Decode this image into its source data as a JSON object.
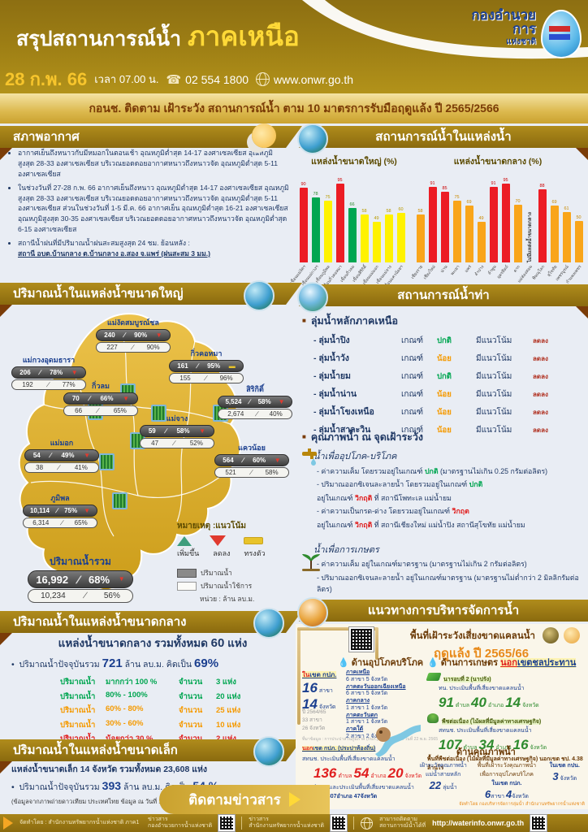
{
  "colors": {
    "gold": "#9a7b16",
    "red": "#ec1c24",
    "green": "#00a651",
    "yellow": "#fff200",
    "orange": "#f9a51a",
    "text_blue": "#1f3864"
  },
  "header": {
    "title_prefix": "สรุปสถานการณ์น้ำ",
    "title_region": "ภาคเหนือ",
    "date": "28 ก.พ. 66",
    "time_label": "เวลา 07.00 น.",
    "phone": "02 554 1800",
    "website": "www.onwr.go.th",
    "logo_line1": "กองอำนวยการ",
    "logo_line2": "แห่งชาติ"
  },
  "banner": "กอนช. ติดตาม เฝ้าระวัง สถานการณ์น้ำ ตาม 10 มาตรการรับมือฤดูแล้ง ปี 2565/2566",
  "weather": {
    "title": "สภาพอากาศ",
    "bullets": [
      "อากาศเย็นถึงหนาวกับมีหมอกในตอนเช้า อุณหภูมิต่ำสุด 14-17 องศาเซลเซียส อุณหภูมิสูงสุด 28-33 องศาเซลเซียส บริเวณยอดดอยอากาศหนาวถึงหนาวจัด อุณหภูมิต่ำสุด 5-11 องศาเซลเซียส",
      "ในช่วงวันที่ 27-28 ก.พ. 66 อากาศเย็นถึงหนาว อุณหภูมิต่ำสุด 14-17 องศาเซลเซียส อุณหภูมิสูงสุด 28-33 องศาเซลเซียส บริเวณยอดดอยอากาศหนาวถึงหนาวจัด อุณหภูมิต่ำสุด 5-11 องศาเซลเซียส ส่วนในช่วงวันที่ 1-5 มี.ค. 66 อากาศเย็น อุณหภูมิต่ำสุด 16-21 องศาเซลเซียส อุณหภูมิสูงสุด 30-35 องศาเซลเซียส บริเวณยอดดอยอากาศหนาวถึงหนาวจัด อุณหภูมิต่ำสุด 6-15 องศาเซลเซียส",
      "สถานีน้ำฝนที่มีปริมาณน้ำฝนสะสมสูงสุด 24 ชม. ย้อนหลัง :"
    ],
    "station_line": "สถานี อบต.บ้านกลาง ต.บ้านกลาง อ.สอง จ.แพร่  (ฝนสะสม 3 มม.)"
  },
  "chart_section": {
    "title": "สถานการณ์น้ำในแหล่งน้ำ"
  },
  "chart_data": {
    "type": "bar",
    "ylim": [
      0,
      100
    ],
    "grid": false,
    "groups": [
      {
        "title": "แหล่งน้ำขนาดใหญ่ (%)",
        "categories": [
          "เขื่อนแม่งัดฯ",
          "เขื่อนแม่กวงฯ",
          "เขื่อนภูมิพล",
          "เขื่อนกิ่วคอหมา",
          "เขื่อนกิ่วลม",
          "เขื่อนสิริกิติ์",
          "เขื่อนแม่มอก",
          "เขื่อนแม่จาง",
          "เขื่อนแควน้อยฯ"
        ],
        "values": [
          90,
          78,
          75,
          95,
          66,
          58,
          49,
          58,
          60
        ],
        "colors": [
          "red",
          "green",
          "yellow",
          "red",
          "green",
          "yellow",
          "yellow",
          "yellow",
          "yellow"
        ]
      },
      {
        "title": "แหล่งน้ำขนาดกลาง (%)",
        "categories": [
          "เชียงราย",
          "เชียงใหม่",
          "น่าน",
          "พะเยา",
          "แพร่",
          "ลำปาง",
          "ลำพูน",
          "อุตรดิตถ์",
          "ตาก",
          "แม่ฮ่องสอน",
          "พิษณุโลก",
          "สุโขทัย",
          "เพชรบูรณ์",
          "กำแพงเพชร"
        ],
        "values": [
          58,
          91,
          85,
          75,
          69,
          49,
          91,
          95,
          70,
          null,
          88,
          69,
          61,
          50
        ],
        "colors": [
          "orange",
          "red",
          "red",
          "orange",
          "orange",
          "orange",
          "red",
          "red",
          "orange",
          null,
          "red",
          "orange",
          "orange",
          "orange"
        ],
        "no_data_label": "ไม่มีแหล่งน้ำขนาดกลาง"
      }
    ]
  },
  "large_sources": {
    "title": "ปริมาณน้ำในแหล่งน้ำขนาดใหญ่",
    "dams": [
      {
        "name": "แม่งัดสมบูรณ์ชล",
        "vol": "240",
        "pct": "90%",
        "trend": "down",
        "vol2": "227",
        "pct2": "90%"
      },
      {
        "name": "แม่กวงอุดมธารา",
        "vol": "206",
        "pct": "78%",
        "trend": "down",
        "vol2": "192",
        "pct2": "77%"
      },
      {
        "name": "กิ่วคอหมา",
        "vol": "161",
        "pct": "95%",
        "trend": "steady",
        "vol2": "155",
        "pct2": "96%"
      },
      {
        "name": "กิ่วลม",
        "vol": "70",
        "pct": "66%",
        "trend": "down",
        "vol2": "66",
        "pct2": "65%"
      },
      {
        "name": "สิริกิติ์",
        "vol": "5,524",
        "pct": "58%",
        "trend": "down",
        "vol2": "2,674",
        "pct2": "40%"
      },
      {
        "name": "แม่จาง",
        "vol": "59",
        "pct": "58%",
        "trend": "down",
        "vol2": "47",
        "pct2": "52%"
      },
      {
        "name": "แม่มอก",
        "vol": "54",
        "pct": "49%",
        "trend": "down",
        "vol2": "38",
        "pct2": "41%"
      },
      {
        "name": "แควน้อย",
        "vol": "564",
        "pct": "60%",
        "trend": "down",
        "vol2": "521",
        "pct2": "58%"
      },
      {
        "name": "ภูมิพล",
        "vol": "10,114",
        "pct": "75%",
        "trend": "down",
        "vol2": "6,314",
        "pct2": "65%"
      }
    ],
    "total": {
      "name": "ปริมาณน้ำรวม",
      "vol": "16,992",
      "pct": "68%",
      "trend": "down",
      "vol2": "10,234",
      "pct2": "56%"
    },
    "note_title": "หมายเหตุ :แนวโน้ม",
    "trend_up": "เพิ่มขึ้น",
    "trend_down": "ลดลง",
    "trend_steady": "ทรงตัว",
    "legend_vol": "ปริมาณน้ำ",
    "legend_usable": "ปริมาณน้ำใช้การ",
    "unit": "หน่วย : ล้าน ลบ.ม."
  },
  "river": {
    "title": "สถานการณ์น้ำท่า",
    "subtitle": "ลุ่มน้ำหลักภาคเหนือ",
    "col_criteria": "เกณฑ์",
    "col_trend": "มีแนวโน้ม",
    "basins": [
      {
        "name": "- ลุ่มน้ำปิง",
        "status": "ปกติ",
        "status_color": "green",
        "trend": "ลดลง"
      },
      {
        "name": "- ลุ่มน้ำวัง",
        "status": "น้อย",
        "status_color": "orange",
        "trend": "ลดลง"
      },
      {
        "name": "- ลุ่มน้ำยม",
        "status": "ปกติ",
        "status_color": "green",
        "trend": "ลดลง"
      },
      {
        "name": "- ลุ่มน้ำน่าน",
        "status": "น้อย",
        "status_color": "orange",
        "trend": "ลดลง"
      },
      {
        "name": "- ลุ่มน้ำโขงเหนือ",
        "status": "น้อย",
        "status_color": "orange",
        "trend": "ลดลง"
      },
      {
        "name": "- ลุ่มน้ำสาละวิน",
        "status": "น้อย",
        "status_color": "orange",
        "trend": "ลดลง"
      }
    ]
  },
  "quality": {
    "title": "คุณภาพน้ำ ณ จุดเฝ้าระวัง",
    "consumption_title": "น้ำเพื่ออุปโภค-บริโภค",
    "lines": [
      {
        "pre": "- ค่าความเค็ม โดยรวมอยู่ในเกณฑ์",
        "status": "ปกติ",
        "status_color": "green",
        "post": "(มาตรฐานไม่เกิน 0.25 กรัมต่อลิตร)"
      },
      {
        "pre": "- ปริมาณออกซิเจนละลายน้ำ โดยรวมอยู่ในเกณฑ์",
        "status": "ปกติ",
        "status_color": "green",
        "post": ""
      },
      {
        "pre": "อยู่ในเกณฑ์",
        "status": "วิกฤติ",
        "status_color": "red",
        "post": "ที่ สถานีโพทะเล แม่น้ำยม"
      },
      {
        "pre": "- ค่าความเป็นกรด-ด่าง โดยรวมอยู่ในเกณฑ์",
        "status": "วิกฤต",
        "status_color": "red",
        "post": ""
      },
      {
        "pre": "อยู่ในเกณฑ์",
        "status": "วิกฤติ",
        "status_color": "red",
        "post": "ที่ สถานีเชียงใหม่ แม่น้ำปิง สถานีสุโขทัย แม่น้ำยม"
      }
    ],
    "agri_title": "น้ำเพื่อการเกษตร",
    "agri_lines": [
      "- ค่าความเค็ม อยู่ในเกณฑ์มาตรฐาน (มาตรฐานไม่เกิน 2 กรัมต่อลิตร)",
      "- ปริมาณออกซิเจนละลายน้ำ อยู่ในเกณฑ์มาตรฐาน (มาตรฐานไม่ต่ำกว่า 2 มิลลิกรัมต่อลิตร)"
    ]
  },
  "medium_sources": {
    "title": "ปริมาณน้ำในแหล่งน้ำขนาดกลาง",
    "subtitle_pre": "แหล่งน้ำขนาดกลาง รวมทั้งหมด",
    "subtitle_num": "60",
    "subtitle_post": "แห่ง",
    "current_pre": "ปริมาณน้ำปัจจุบันรวม",
    "current_num": "721",
    "current_mid": "ล้าน ลบ.ม. คิดเป็น",
    "current_pct": "69%",
    "rows": [
      {
        "label": "ปริมาณน้ำ",
        "range": "มากกว่า 100 %",
        "count_label": "จำนวน",
        "count": "3 แห่ง",
        "color": "green"
      },
      {
        "label": "ปริมาณน้ำ",
        "range": "80% - 100%",
        "count_label": "จำนวน",
        "count": "20 แห่ง",
        "color": "green"
      },
      {
        "label": "ปริมาณน้ำ",
        "range": "60% - 80%",
        "count_label": "จำนวน",
        "count": "25 แห่ง",
        "color": "orange"
      },
      {
        "label": "ปริมาณน้ำ",
        "range": "30% - 60%",
        "count_label": "จำนวน",
        "count": "10 แห่ง",
        "color": "orange"
      },
      {
        "label": "ปริมาณน้ำ",
        "range": "น้อยกว่า 30 %",
        "count_label": "จำนวน",
        "count": "2 แห่ง",
        "color": "red"
      }
    ]
  },
  "small_sources": {
    "title": "ปริมาณน้ำในแหล่งน้ำขนาดเล็ก",
    "line1": "แหล่งน้ำขนาดเล็ก 14 จังหวัด รวมทั้งหมด 23,608 แห่ง",
    "line2_pre": "ปริมาณน้ำปัจจุบันรวม",
    "line2_num": "393",
    "line2_mid": "ล้าน ลบ.ม. คิดเป็น",
    "line2_pct": "54 %",
    "note": "(ข้อมูลจากภาพถ่ายดาวเทียม ประเทศไทย ข้อมูล ณ วันที่ 16 ต.ค. 65)"
  },
  "management": {
    "title": "แนวทางการบริหารจัดการน้ำ",
    "headline": "พื้นที่เฝ้าระวังเสี่ยงขาดแคลนน้ำ",
    "season": "ฤดูแล้ง ปี 2565/66",
    "consumption": {
      "title": "ด้านอุปโภคบริโภค",
      "in_em": "ใน",
      "in_rest": "เขต กปภ.",
      "stats": [
        {
          "n": "16",
          "u": "สาขา"
        },
        {
          "n": "14",
          "u": "จังหวัด"
        }
      ],
      "prev_lines": [
        "ปี 2564/65",
        "33 สาขา",
        "26 จังหวัด"
      ],
      "regions": [
        {
          "name": "ภาคเหนือ",
          "detail": "6 สาขา 5 จังหวัด"
        },
        {
          "name": "ภาคตะวันออกเฉียงเหนือ",
          "detail": "6 สาขา 5 จังหวัด"
        },
        {
          "name": "ภาคกลาง",
          "detail": "1 สาขา 1 จังหวัด"
        },
        {
          "name": "ภาคตะวันตก",
          "detail": "1 สาขา 1 จังหวัด"
        },
        {
          "name": "ภาคใต้",
          "detail": "2 สาขา 2 จังหวัด"
        }
      ],
      "source_note": "ที่มาข้อมูล : การประปาส่วนภูมิภาค (กปภ.) คาดการณ์ ณ วันที่ 22 พ.ย. 2565",
      "out_em": "นอก",
      "out_rest": "เขต กปภ. (ประปาท้องถิ่น)",
      "out_line1": "สทนช. ประเมินพื้นที่เสี่ยงขาดแคลนน้ำ",
      "out_stats": [
        {
          "n": "136",
          "u": "ตำบล"
        },
        {
          "n": "54",
          "u": "อำเภอ"
        },
        {
          "n": "20",
          "u": "จังหวัด"
        }
      ],
      "out_line2": "ตท. สำรวจและประเมินพื้นที่เสี่ยงขาดแคลนน้ำ",
      "out_line3": "926ตำบล 307อำเภอ 47จังหวัด"
    },
    "agriculture": {
      "title": "ด้านการเกษตร",
      "title_em": "นอก",
      "title_rest": "เขตชลประทาน",
      "rice_label": "นารอบที่ 2 (นาปรัง)",
      "rice_line": "ทน. ประเมินพื้นที่เสี่ยงขาดแคลนน้ำ",
      "rice_stats": [
        {
          "n": "91",
          "u": "ตำบล"
        },
        {
          "n": "40",
          "u": "อำเภอ"
        },
        {
          "n": "14",
          "u": "จังหวัด"
        }
      ],
      "fruit_label": "พืชต่อเนื่อง (ไม้ผลที่มีมูลค่าทางเศรษฐกิจ)",
      "fruit_line": "สทนช. ประเมินพื้นที่เสี่ยงขาดแคลนน้ำ",
      "fruit_stats": [
        {
          "n": "107",
          "u": "ตำบล"
        },
        {
          "n": "34",
          "u": "อำเภอ"
        },
        {
          "n": "16",
          "u": "จังหวัด"
        }
      ],
      "fruit_note": "พื้นที่พืชต่อเนื่อง (ไม้ผลที่มีมูลค่าทางเศรษฐกิจ) นอกเขต ชป. 4.38 ล้านไร่"
    },
    "water_quality": {
      "title": "ด้านคุณภาพน้ำ",
      "col1_label": "เฝ้าระวังคุณภาพน้ำ แม่น้ำสายหลัก",
      "col1_value": "22",
      "col1_unit": "ลุ่มน้ำ",
      "col2_label": "พื้นที่เฝ้าระวังคุณภาพน้ำเพื่อการอุปโภคบริโภค",
      "col2a_label": "ในเขต กปภ.",
      "col2a_value": "6",
      "col2a_unit": "สาขา",
      "col2a_value2": "4",
      "col2a_unit2": "จังหวัด",
      "col2b_label": "ในเขต กปน.",
      "col2b_value": "3",
      "col2b_unit": "จังหวัด"
    },
    "footer_note": "จัดทำโดย กองบริหารจัดการลุ่มน้ำ สำนักงานทรัพยากรน้ำแห่งชาติ"
  },
  "footer": {
    "follow": "ติดตามข่าวสาร",
    "made_by": "จัดทำโดย : สำนักงานทรัพยากรน้ำแห่งชาติ ภาค1",
    "qr1_l1": "ข่าวสาร",
    "qr1_l2": "กองอำนวยการน้ำแห่งชาติ",
    "qr2_l1": "ข่าวสาร",
    "qr2_l2": "สำนักงานทรัพยากรน้ำแห่งชาติ",
    "track_l1": "สามารถติดตาม",
    "track_l2": "สถานการณ์น้ำได้ที่",
    "track_url": "http://waterinfo.onwr.go.th"
  }
}
